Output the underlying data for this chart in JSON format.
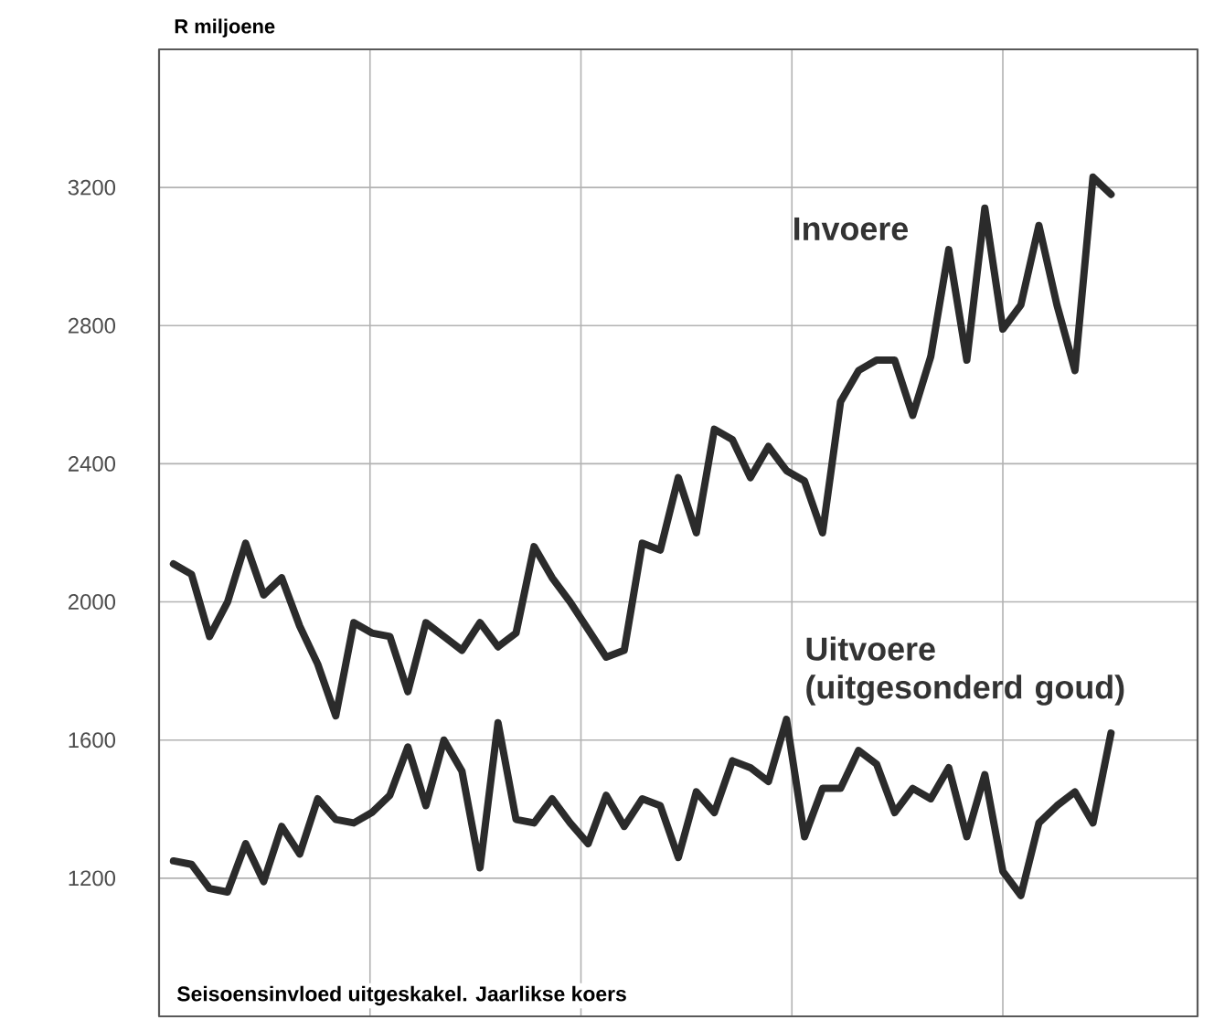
{
  "chart_data": {
    "type": "line",
    "ylabel": "R miljoene",
    "annotations": [
      "Seisoensinvloed uitgeskakel. Jaarlikse koers"
    ],
    "categories": [
      null,
      null,
      null,
      null,
      null,
      null,
      null,
      null,
      null,
      null,
      null,
      null,
      null,
      null,
      null,
      null,
      null,
      null,
      null,
      null,
      null,
      null,
      null,
      null,
      null,
      null,
      null,
      null,
      null,
      null,
      null,
      null,
      null,
      null,
      null,
      null,
      null,
      null,
      null,
      null,
      null,
      null,
      null,
      null,
      null,
      null,
      null,
      null,
      null,
      null,
      null,
      null,
      null
    ],
    "ylim": [
      800,
      3600
    ],
    "yticks": [
      1200,
      1600,
      2000,
      2400,
      2800,
      3200
    ],
    "grid": true,
    "tick_labels": "y",
    "legend": false,
    "marker": "none",
    "line_style": "solid",
    "series": [
      {
        "name": "Invoere",
        "color": "#2b2b2b",
        "values": [
          2110,
          2080,
          1900,
          2000,
          2170,
          2020,
          2070,
          1930,
          1820,
          1670,
          1940,
          1910,
          1900,
          1740,
          1940,
          1900,
          1860,
          1940,
          1870,
          1910,
          2160,
          2070,
          2000,
          1920,
          1840,
          1860,
          2170,
          2150,
          2360,
          2200,
          2500,
          2470,
          2360,
          2450,
          2380,
          2350,
          2200,
          2580,
          2670,
          2700,
          2700,
          2540,
          2710,
          3020,
          2700,
          3140,
          2790,
          2860,
          3090,
          2860,
          2670,
          3230,
          3180
        ]
      },
      {
        "name": "Uitvoere (uitgesonderd goud)",
        "color": "#2b2b2b",
        "values": [
          1250,
          1240,
          1170,
          1160,
          1300,
          1190,
          1350,
          1270,
          1430,
          1370,
          1360,
          1390,
          1440,
          1580,
          1410,
          1600,
          1510,
          1230,
          1650,
          1370,
          1360,
          1430,
          1360,
          1300,
          1440,
          1350,
          1430,
          1410,
          1260,
          1450,
          1390,
          1540,
          1520,
          1480,
          1660,
          1320,
          1460,
          1460,
          1570,
          1530,
          1390,
          1460,
          1430,
          1520,
          1320,
          1500,
          1220,
          1150,
          1360,
          1410,
          1450,
          1360,
          1620
        ]
      }
    ]
  }
}
